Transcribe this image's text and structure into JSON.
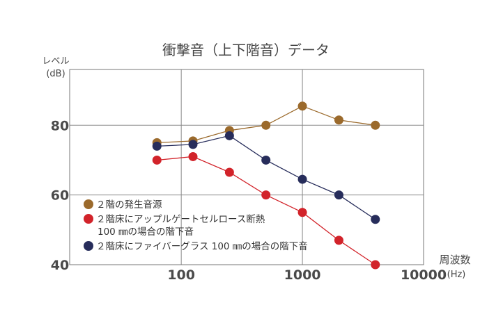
{
  "chart_data": {
    "type": "line",
    "title": "衝撃音（上下階音）データ",
    "ylabel": "レベル",
    "yunit": "(dB)",
    "xlabel": "周波数",
    "xunit": "(Hz)",
    "x_scale": "log",
    "xlim": [
      12,
      10000
    ],
    "ylim": [
      40,
      96
    ],
    "x_ticks": [
      100,
      1000,
      10000
    ],
    "x_tick_labels": [
      "100",
      "1000",
      "10000"
    ],
    "y_ticks": [
      40,
      60,
      80
    ],
    "y_tick_labels": [
      "40",
      "60",
      "80"
    ],
    "grid": true,
    "legend_position": "bottom-left",
    "x": [
      63,
      125,
      250,
      500,
      1000,
      2000,
      4000
    ],
    "series": [
      {
        "name": "２階の発生音源",
        "name_lines": [
          "２階の発生音源"
        ],
        "color": "#9b6a2c",
        "values": [
          75,
          75.5,
          78.5,
          80,
          85.5,
          81.5,
          80
        ]
      },
      {
        "name": "２階床にアップルゲートセルロース断熱 100 ㎜の場合の階下音",
        "name_lines": [
          "２階床にアップルゲートセルロース断熱",
          "100 ㎜の場合の階下音"
        ],
        "color": "#d2232a",
        "values": [
          70,
          71,
          66.5,
          60,
          55,
          47,
          40
        ]
      },
      {
        "name": "２階床にファイバーグラス 100 ㎜の場合の階下音",
        "name_lines": [
          "２階床にファイバーグラス 100 ㎜の場合の階下音"
        ],
        "color": "#272d5b",
        "values": [
          74,
          74.5,
          77,
          70,
          64.5,
          60,
          53
        ]
      }
    ]
  }
}
